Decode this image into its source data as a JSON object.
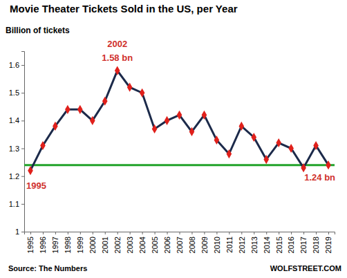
{
  "chart_data": {
    "type": "line",
    "title": "Movie Theater Tickets Sold in the US, per Year",
    "subtitle": "Billion of tickets",
    "source": "Source: The Numbers",
    "credit": "WOLFSTREET.COM",
    "categories": [
      "1995",
      "1996",
      "1997",
      "1998",
      "1999",
      "2000",
      "2001",
      "2002",
      "2003",
      "2004",
      "2005",
      "2006",
      "2007",
      "2008",
      "2009",
      "2010",
      "2011",
      "2012",
      "2013",
      "2014",
      "2015",
      "2016",
      "2017",
      "2018",
      "2019"
    ],
    "values": [
      1.22,
      1.31,
      1.38,
      1.44,
      1.44,
      1.4,
      1.47,
      1.58,
      1.52,
      1.5,
      1.37,
      1.4,
      1.42,
      1.36,
      1.42,
      1.33,
      1.28,
      1.38,
      1.34,
      1.26,
      1.32,
      1.3,
      1.23,
      1.31,
      1.24
    ],
    "color": "#1c2a4a",
    "marker": "diamond",
    "line_style": "solid",
    "grid": false,
    "ylim": [
      1,
      1.65
    ],
    "yticks": [
      1,
      1.1,
      1.2,
      1.3,
      1.4,
      1.5,
      1.6
    ],
    "reference_line": {
      "value": 1.24,
      "color": "#22a32a"
    },
    "annotations": [
      {
        "text": "2002",
        "x": "2002"
      },
      {
        "text": "1.58 bn",
        "x": "2002",
        "value": 1.58
      },
      {
        "text": "1995",
        "x": "1995"
      },
      {
        "text": "1.24 bn",
        "x": "2019",
        "value": 1.24
      }
    ]
  }
}
